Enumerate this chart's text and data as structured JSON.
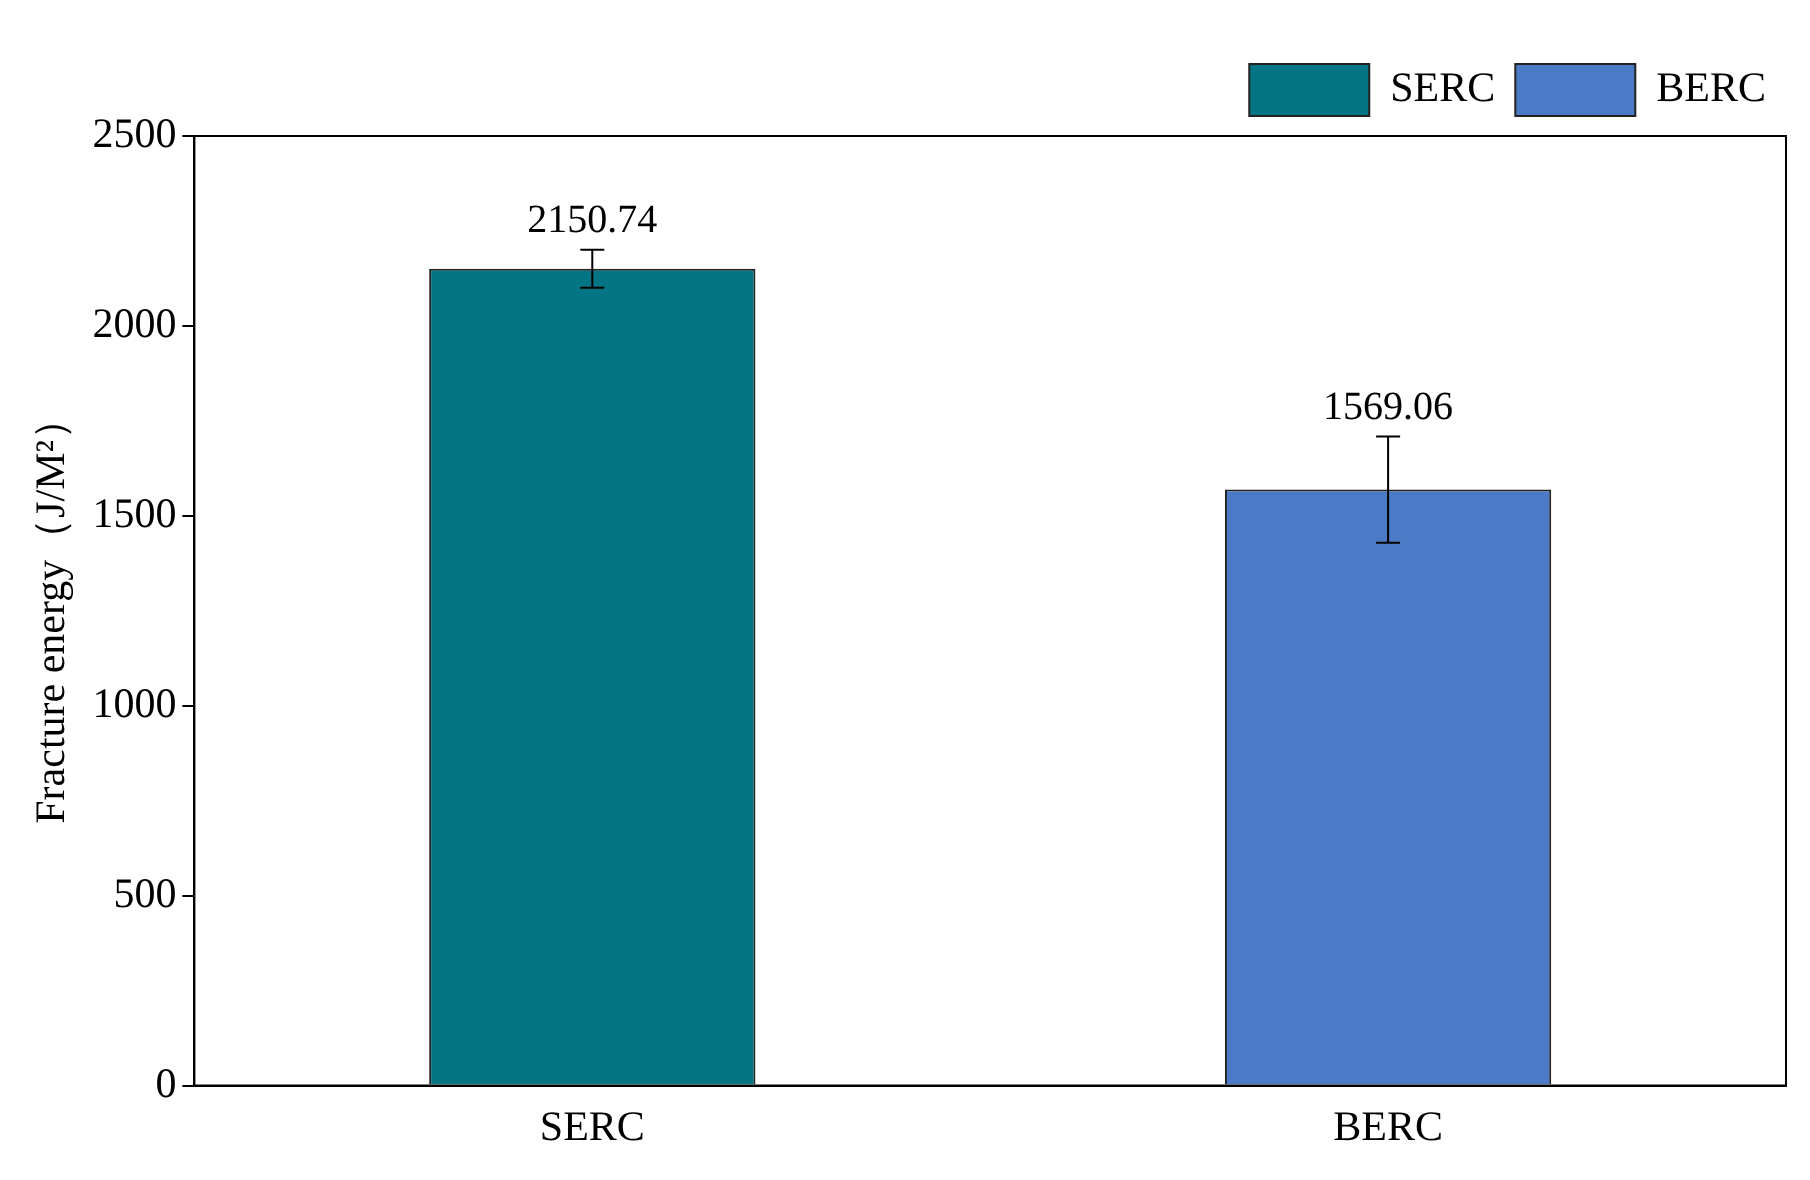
{
  "chart_data": {
    "type": "bar",
    "ylabel": "Fracture energy（J/M²）",
    "categories": [
      "SERC",
      "BERC"
    ],
    "series": [
      {
        "name": "SERC",
        "color": "#037585",
        "values": [
          2150.74,
          null
        ],
        "errors": [
          50,
          null
        ]
      },
      {
        "name": "BERC",
        "color": "#4b7bc6",
        "values": [
          null,
          1569.06
        ],
        "errors": [
          null,
          140
        ]
      }
    ],
    "ylim": [
      0,
      2500
    ],
    "yticks": [
      0,
      500,
      1000,
      1500,
      2000,
      2500
    ],
    "grid": false,
    "legend": "top right",
    "data_labels": true
  }
}
